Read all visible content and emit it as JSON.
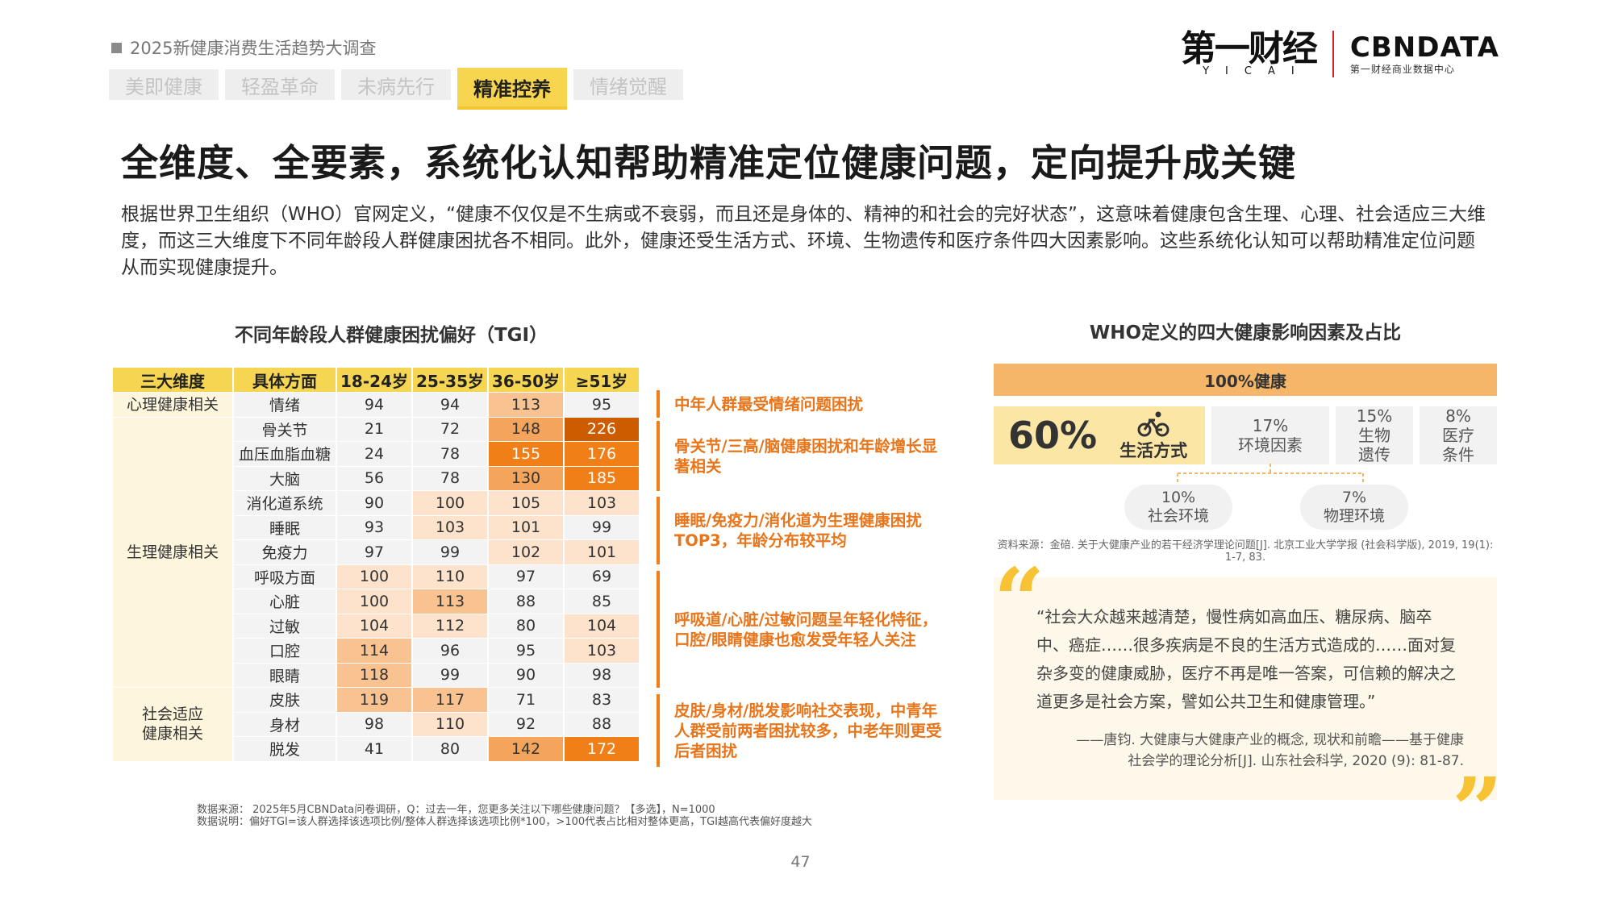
{
  "header": {
    "report_tag": "2025新健康消费生活趋势大调查",
    "tabs": [
      {
        "label": "美即健康",
        "active": false
      },
      {
        "label": "轻盈革命",
        "active": false
      },
      {
        "label": "未病先行",
        "active": false
      },
      {
        "label": "精准控养",
        "active": true
      },
      {
        "label": "情绪觉醒",
        "active": false
      }
    ],
    "logos": {
      "yicai_main": "第一财经",
      "yicai_sub": "YICAI",
      "cbn_main": "CBNDATA",
      "cbn_sub": "第一财经商业数据中心"
    }
  },
  "title": "全维度、全要素，系统化认知帮助精准定位健康问题，定向提升成关键",
  "intro": "根据世界卫生组织（WHO）官网定义，“健康不仅仅是不生病或不衰弱，而且还是身体的、精神的和社会的完好状态”，这意味着健康包含生理、心理、社会适应三大维度，而这三大维度下不同年龄段人群健康困扰各不相同。此外，健康还受生活方式、环境、生物遗传和医疗条件四大因素影响。这些系统化认知可以帮助精准定位问题从而实现健康提升。",
  "tgi": {
    "title": "不同年龄段人群健康困扰偏好（TGI）",
    "headers": [
      "三大维度",
      "具体方面",
      "18-24岁",
      "25-35岁",
      "36-50岁",
      "≥51岁"
    ],
    "groups": [
      {
        "dimension": "心理健康相关",
        "rows": [
          {
            "aspect": "情绪",
            "values": [
              94,
              94,
              113,
              95
            ]
          }
        ]
      },
      {
        "dimension": "生理健康相关",
        "rows": [
          {
            "aspect": "骨关节",
            "values": [
              21,
              72,
              148,
              226
            ]
          },
          {
            "aspect": "血压血脂血糖",
            "values": [
              24,
              78,
              155,
              176
            ]
          },
          {
            "aspect": "大脑",
            "values": [
              56,
              78,
              130,
              185
            ]
          },
          {
            "aspect": "消化道系统",
            "values": [
              90,
              100,
              105,
              103
            ]
          },
          {
            "aspect": "睡眠",
            "values": [
              93,
              103,
              101,
              99
            ]
          },
          {
            "aspect": "免疫力",
            "values": [
              97,
              99,
              102,
              101
            ]
          },
          {
            "aspect": "呼吸方面",
            "values": [
              100,
              110,
              97,
              69
            ]
          },
          {
            "aspect": "心脏",
            "values": [
              100,
              113,
              88,
              85
            ]
          },
          {
            "aspect": "过敏",
            "values": [
              104,
              112,
              80,
              104
            ]
          },
          {
            "aspect": "口腔",
            "values": [
              114,
              96,
              95,
              103
            ]
          },
          {
            "aspect": "眼睛",
            "values": [
              118,
              99,
              90,
              98
            ]
          }
        ]
      },
      {
        "dimension": "社会适应\n健康相关",
        "rows": [
          {
            "aspect": "皮肤",
            "values": [
              119,
              117,
              71,
              83
            ]
          },
          {
            "aspect": "身材",
            "values": [
              98,
              110,
              92,
              88
            ]
          },
          {
            "aspect": "脱发",
            "values": [
              41,
              80,
              142,
              172
            ]
          }
        ]
      }
    ],
    "notes": [
      "中年人群最受情绪问题困扰",
      "骨关节/三高/脑健康困扰和年龄增长显著相关",
      "睡眠/免疫力/消化道为生理健康困扰TOP3，年龄分布较平均",
      "呼吸道/心脏/过敏问题呈年轻化特征，口腔/眼睛健康也愈发受年轻人关注",
      "皮肤/身材/脱发影响社交表现，中青年人群受前两者困扰较多，中老年则更受后者困扰"
    ],
    "footnote_source": "数据来源：  2025年5月CBNData问卷调研，Q：过去一年，您更多关注以下哪些健康问题？【多选】，N=1000",
    "footnote_desc": "数据说明：偏好TGI=该人群选择该选项比例/整体人群选择该选项比例*100，>100代表占比相对整体更高，TGI越高代表偏好度越大"
  },
  "who": {
    "title": "WHO定义的四大健康影响因素及占比",
    "health_label": "100%健康",
    "factors": {
      "lifestyle": {
        "pct": "60%",
        "label": "生活方式",
        "icon": "bicycle-icon"
      },
      "environment": {
        "pct": "17%",
        "label": "环境因素"
      },
      "genetics": {
        "pct": "15%",
        "label": "生物\n遗传"
      },
      "medical": {
        "pct": "8%",
        "label": "医疗\n条件"
      }
    },
    "sub_factors": {
      "social": {
        "pct": "10%",
        "label": "社会环境"
      },
      "physical": {
        "pct": "7%",
        "label": "物理环境"
      }
    },
    "source": "资料来源：金碚. 关于大健康产业的若干经济学理论问题[J]. 北京工业大学学报 (社会科学版), 2019, 19(1): 1-7, 83."
  },
  "quote": {
    "text": "“社会大众越来越清楚，慢性病如高血压、糖尿病、脑卒中、癌症……很多疾病是不良的生活方式造成的……面对复杂多变的健康威胁，医疗不再是唯一答案，可信赖的解决之道更多是社会方案，譬如公共卫生和健康管理。”",
    "citation_line1": "——唐钧. 大健康与大健康产业的概念, 现状和前瞻——基于健康",
    "citation_line2": "社会学的理论分析[J]. 山东社会科学, 2020 (9): 81-87."
  },
  "page_number": "47",
  "colors": {
    "accent_yellow": "#f6d552",
    "accent_orange": "#f07f17",
    "deep_orange": "#cd5c00",
    "quote_mark": "#f7c233"
  }
}
